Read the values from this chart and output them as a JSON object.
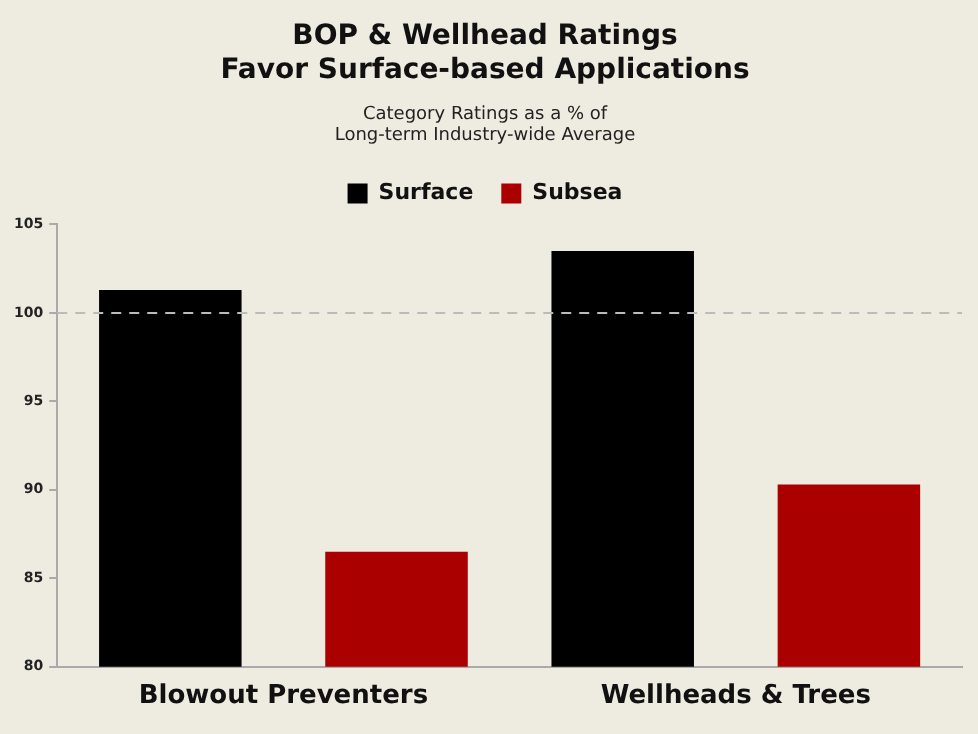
{
  "chart_data": {
    "type": "bar",
    "title": "BOP & Wellhead Ratings\nFavor Surface-based Applications",
    "subtitle": "Category Ratings as a % of\nLong-term Industry-wide Average",
    "categories": [
      "Blowout Preventers",
      "Wellheads & Trees"
    ],
    "series": [
      {
        "name": "Surface",
        "color": "#000000",
        "values": [
          101.3,
          103.5
        ]
      },
      {
        "name": "Subsea",
        "color": "#aa0000",
        "values": [
          86.5,
          90.3
        ]
      }
    ],
    "ylim": [
      80,
      105
    ],
    "yticks": [
      80,
      85,
      90,
      95,
      100,
      105
    ],
    "ref_lines": [
      {
        "axis": "y",
        "value": 100,
        "color": "#bbbbbb",
        "line_style": "dashed"
      }
    ],
    "grid": false,
    "legend": "top"
  }
}
